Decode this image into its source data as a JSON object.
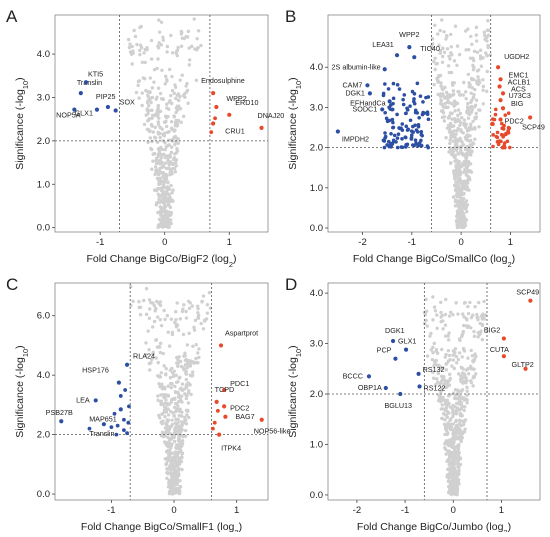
{
  "colors": {
    "background": "#d0d0d0",
    "down": "#2c4fa3",
    "up": "#e8492a",
    "threshold": "#555555"
  },
  "chart_data": [
    {
      "type": "scatter",
      "panel": "A",
      "xlabel": "Fold Change BigCo/BigF2 (log",
      "xlabel_sub": "2",
      "ylabel": "Significance (-log",
      "ylabel_sub": "10",
      "xlim": [
        -1.7,
        1.6
      ],
      "ylim": [
        -0.1,
        4.9
      ],
      "xticks": [
        -1,
        0,
        1
      ],
      "yticks": [
        0.0,
        1.0,
        2.0,
        3.0,
        4.0
      ],
      "thresholds": {
        "x": [
          -0.7,
          0.7
        ],
        "y": 2.0
      },
      "background_cloud": {
        "count": 520,
        "min_y": 0.0,
        "max_y": 4.8
      },
      "labeled_points": [
        {
          "label": "Translin",
          "x": -1.3,
          "y": 3.1,
          "group": "down"
        },
        {
          "label": "KTI5",
          "x": -1.22,
          "y": 3.35,
          "group": "down"
        },
        {
          "label": "PIP25",
          "x": -0.88,
          "y": 2.78,
          "group": "down"
        },
        {
          "label": "SOX",
          "x": -0.76,
          "y": 2.7,
          "group": "down"
        },
        {
          "label": "GLX1",
          "x": -1.05,
          "y": 2.72,
          "group": "down"
        },
        {
          "label": "NOP5A",
          "x": -1.4,
          "y": 2.72,
          "group": "down"
        },
        {
          "label": "Endosulphine",
          "x": 0.75,
          "y": 3.1,
          "group": "up"
        },
        {
          "label": "WPP2",
          "x": 0.8,
          "y": 2.78,
          "group": "up"
        },
        {
          "label": "ERD10",
          "x": 1.0,
          "y": 2.6,
          "group": "up"
        },
        {
          "label": "DNAJ20",
          "x": 1.5,
          "y": 2.3,
          "group": "up"
        },
        {
          "label": "CRU1",
          "x": 0.75,
          "y": 2.4,
          "group": "up"
        }
      ],
      "extra_points": [
        {
          "x": 0.72,
          "y": 2.2,
          "group": "up"
        },
        {
          "x": 0.78,
          "y": 2.52,
          "group": "up"
        }
      ]
    },
    {
      "type": "scatter",
      "panel": "B",
      "xlabel": "Fold Change BigCo/SmallCo (log",
      "xlabel_sub": "2",
      "ylabel": "Significance (-log",
      "ylabel_sub": "10",
      "xlim": [
        -2.7,
        1.6
      ],
      "ylim": [
        -0.1,
        5.3
      ],
      "xticks": [
        -2,
        -1,
        0,
        1
      ],
      "yticks": [
        0.0,
        1.0,
        2.0,
        3.0,
        4.0
      ],
      "thresholds": {
        "x": [
          -0.6,
          0.6
        ],
        "y": 2.0
      },
      "background_cloud": {
        "count": 700,
        "min_y": 0.0,
        "max_y": 5.2
      },
      "down_cluster": {
        "count": 120,
        "x_range": [
          -1.6,
          -0.65
        ],
        "y_range": [
          2.0,
          3.6
        ]
      },
      "up_cluster": {
        "count": 40,
        "x_range": [
          0.62,
          1.0
        ],
        "y_range": [
          2.0,
          3.0
        ]
      },
      "labeled_points": [
        {
          "label": "WPP2",
          "x": -1.05,
          "y": 4.5,
          "group": "down"
        },
        {
          "label": "LEA31",
          "x": -1.3,
          "y": 4.3,
          "group": "down"
        },
        {
          "label": "TIC40",
          "x": -0.95,
          "y": 4.25,
          "group": "down"
        },
        {
          "label": "2S albumin-like",
          "x": -1.55,
          "y": 3.95,
          "group": "down"
        },
        {
          "label": "CAM7",
          "x": -1.9,
          "y": 3.55,
          "group": "down"
        },
        {
          "label": "DGK1",
          "x": -1.85,
          "y": 3.35,
          "group": "down"
        },
        {
          "label": "EFHandCa",
          "x": -1.45,
          "y": 3.15,
          "group": "down"
        },
        {
          "label": "SODC1",
          "x": -1.6,
          "y": 2.95,
          "group": "down"
        },
        {
          "label": "IMPDH2",
          "x": -2.5,
          "y": 2.4,
          "group": "down"
        },
        {
          "label": "UGDH2",
          "x": 0.75,
          "y": 4.0,
          "group": "up"
        },
        {
          "label": "EMC1",
          "x": 0.8,
          "y": 3.7,
          "group": "up"
        },
        {
          "label": "ACLB1",
          "x": 0.78,
          "y": 3.52,
          "group": "up"
        },
        {
          "label": "ACS",
          "x": 0.85,
          "y": 3.35,
          "group": "up"
        },
        {
          "label": "U73C3",
          "x": 0.8,
          "y": 3.18,
          "group": "up"
        },
        {
          "label": "BIG",
          "x": 0.85,
          "y": 2.98,
          "group": "up"
        },
        {
          "label": "PDC2",
          "x": 0.8,
          "y": 2.7,
          "group": "up"
        },
        {
          "label": "SCP49",
          "x": 1.4,
          "y": 2.75,
          "group": "up"
        }
      ]
    },
    {
      "type": "scatter",
      "panel": "C",
      "xlabel": "Fold Change BigCo/SmallF1 (log",
      "xlabel_sub": "2",
      "ylabel": "Significance (-log",
      "ylabel_sub": "10",
      "xlim": [
        -1.9,
        1.5
      ],
      "ylim": [
        -0.2,
        7.1
      ],
      "xticks": [
        -1,
        0,
        1
      ],
      "yticks": [
        0.0,
        2.0,
        4.0,
        6.0
      ],
      "thresholds": {
        "x": [
          -0.7,
          0.6
        ],
        "y": 2.0
      },
      "background_cloud": {
        "count": 600,
        "min_y": 0.0,
        "max_y": 7.0
      },
      "labeled_points": [
        {
          "label": "HSP176",
          "x": -0.88,
          "y": 3.75,
          "group": "down"
        },
        {
          "label": "RLA24",
          "x": -0.75,
          "y": 4.35,
          "group": "down"
        },
        {
          "label": "LEA",
          "x": -1.25,
          "y": 3.15,
          "group": "down"
        },
        {
          "label": "MAP651",
          "x": -0.85,
          "y": 2.85,
          "group": "down"
        },
        {
          "label": "PSB27B",
          "x": -1.8,
          "y": 2.45,
          "group": "down"
        },
        {
          "label": "Translin",
          "x": -1.12,
          "y": 2.35,
          "group": "down"
        },
        {
          "label": "Aspartprot",
          "x": 0.75,
          "y": 5.0,
          "group": "up"
        },
        {
          "label": "PDC1",
          "x": 0.8,
          "y": 3.5,
          "group": "up"
        },
        {
          "label": "PDC2",
          "x": 0.8,
          "y": 2.95,
          "group": "up"
        },
        {
          "label": "TCPD",
          "x": 0.68,
          "y": 3.1,
          "group": "up"
        },
        {
          "label": "BAG7",
          "x": 0.82,
          "y": 2.6,
          "group": "up"
        },
        {
          "label": "NOP56-like",
          "x": 1.4,
          "y": 2.5,
          "group": "up"
        },
        {
          "label": "ITPK4",
          "x": 0.72,
          "y": 2.0,
          "group": "up"
        }
      ],
      "extra_points": [
        {
          "x": -0.9,
          "y": 2.3,
          "group": "down"
        },
        {
          "x": -0.8,
          "y": 2.5,
          "group": "down"
        },
        {
          "x": -0.95,
          "y": 2.7,
          "group": "down"
        },
        {
          "x": -0.75,
          "y": 2.05,
          "group": "down"
        },
        {
          "x": -0.85,
          "y": 3.3,
          "group": "down"
        },
        {
          "x": -1.0,
          "y": 2.25,
          "group": "down"
        },
        {
          "x": -0.72,
          "y": 2.95,
          "group": "down"
        },
        {
          "x": -0.78,
          "y": 3.5,
          "group": "down"
        },
        {
          "x": -0.92,
          "y": 2.0,
          "group": "down"
        },
        {
          "x": -0.8,
          "y": 2.15,
          "group": "down"
        },
        {
          "x": -1.35,
          "y": 2.2,
          "group": "down"
        },
        {
          "x": -0.73,
          "y": 2.4,
          "group": "down"
        },
        {
          "x": 0.65,
          "y": 2.4,
          "group": "up"
        },
        {
          "x": 0.7,
          "y": 2.8,
          "group": "up"
        },
        {
          "x": 0.62,
          "y": 2.2,
          "group": "up"
        }
      ]
    },
    {
      "type": "scatter",
      "panel": "D",
      "xlabel": "Fold Change BigCo/Jumbo (log",
      "xlabel_sub": "2",
      "ylabel": "Significance (-log",
      "ylabel_sub": "10",
      "xlim": [
        -2.6,
        1.8
      ],
      "ylim": [
        -0.1,
        4.2
      ],
      "xticks": [
        -2,
        -1,
        0,
        1
      ],
      "yticks": [
        0.0,
        1.0,
        2.0,
        3.0,
        4.0
      ],
      "thresholds": {
        "x": [
          -0.6,
          0.7
        ],
        "y": 2.0
      },
      "background_cloud": {
        "count": 650,
        "min_y": 0.0,
        "max_y": 4.0
      },
      "labeled_points": [
        {
          "label": "DGK1",
          "x": -1.25,
          "y": 3.05,
          "group": "down"
        },
        {
          "label": "GLX1",
          "x": -0.98,
          "y": 2.88,
          "group": "down"
        },
        {
          "label": "PCP",
          "x": -1.2,
          "y": 2.7,
          "group": "down"
        },
        {
          "label": "BCCC",
          "x": -1.75,
          "y": 2.35,
          "group": "down"
        },
        {
          "label": "OBP1A",
          "x": -1.4,
          "y": 2.12,
          "group": "down"
        },
        {
          "label": "RS132",
          "x": -0.72,
          "y": 2.4,
          "group": "down"
        },
        {
          "label": "RS122",
          "x": -0.7,
          "y": 2.15,
          "group": "down"
        },
        {
          "label": "BGLU13",
          "x": -1.1,
          "y": 2.0,
          "group": "down"
        },
        {
          "label": "SCP49",
          "x": 1.6,
          "y": 3.85,
          "group": "up"
        },
        {
          "label": "BIG2",
          "x": 1.05,
          "y": 3.1,
          "group": "up"
        },
        {
          "label": "CUTA",
          "x": 1.05,
          "y": 2.75,
          "group": "up"
        },
        {
          "label": "GLTP2",
          "x": 1.5,
          "y": 2.5,
          "group": "up"
        }
      ]
    }
  ]
}
